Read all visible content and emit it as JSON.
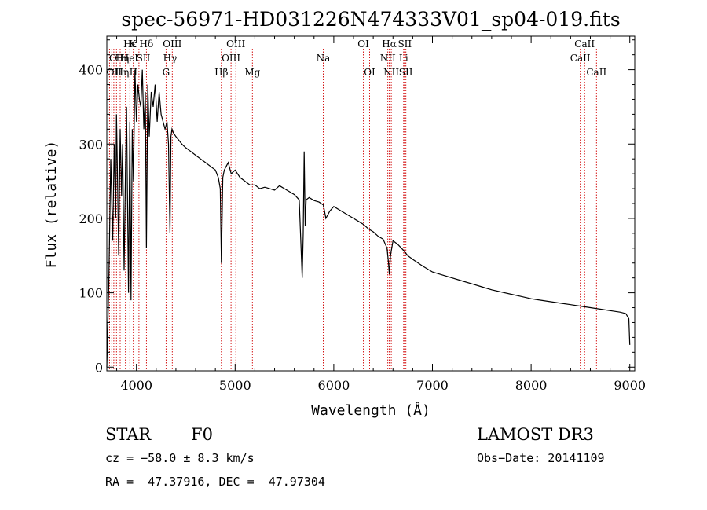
{
  "chart_data": {
    "type": "line",
    "title": "spec-56971-HD031226N474333V01_sp04-019.fits",
    "xlabel": "Wavelength (Å)",
    "ylabel": "Flux (relative)",
    "xlim": [
      3700,
      9050
    ],
    "ylim": [
      -5,
      445
    ],
    "xticks": [
      4000,
      5000,
      6000,
      7000,
      8000,
      9000
    ],
    "yticks": [
      0,
      100,
      200,
      300,
      400
    ],
    "grid": false,
    "series": [
      {
        "name": "spectrum",
        "x": [
          3700,
          3720,
          3740,
          3760,
          3775,
          3790,
          3798,
          3810,
          3820,
          3835,
          3850,
          3860,
          3875,
          3889,
          3900,
          3910,
          3920,
          3933,
          3945,
          3958,
          3970,
          3985,
          4000,
          4015,
          4030,
          4045,
          4060,
          4075,
          4090,
          4101,
          4115,
          4130,
          4150,
          4170,
          4190,
          4210,
          4230,
          4250,
          4270,
          4290,
          4310,
          4325,
          4340,
          4350,
          4360,
          4375,
          4400,
          4430,
          4460,
          4500,
          4550,
          4600,
          4650,
          4700,
          4750,
          4800,
          4830,
          4850,
          4861,
          4875,
          4890,
          4910,
          4930,
          4960,
          5000,
          5050,
          5100,
          5150,
          5200,
          5250,
          5300,
          5350,
          5400,
          5450,
          5500,
          5550,
          5600,
          5650,
          5680,
          5690,
          5700,
          5710,
          5720,
          5750,
          5800,
          5850,
          5895,
          5920,
          5960,
          6000,
          6050,
          6100,
          6150,
          6200,
          6250,
          6300,
          6350,
          6400,
          6450,
          6500,
          6540,
          6555,
          6563,
          6575,
          6600,
          6650,
          6700,
          6750,
          6800,
          6900,
          7000,
          7100,
          7200,
          7300,
          7400,
          7500,
          7600,
          7700,
          7800,
          7900,
          8000,
          8100,
          8200,
          8300,
          8400,
          8500,
          8600,
          8700,
          8800,
          8900,
          8960,
          8990,
          9000
        ],
        "y": [
          0,
          110,
          280,
          170,
          300,
          200,
          340,
          240,
          150,
          320,
          230,
          300,
          130,
          260,
          350,
          220,
          100,
          330,
          90,
          320,
          250,
          400,
          330,
          380,
          360,
          350,
          400,
          320,
          370,
          160,
          380,
          310,
          370,
          350,
          380,
          330,
          370,
          340,
          330,
          320,
          330,
          300,
          180,
          310,
          320,
          315,
          310,
          305,
          300,
          295,
          290,
          285,
          280,
          275,
          270,
          265,
          255,
          240,
          140,
          255,
          265,
          270,
          275,
          260,
          265,
          255,
          250,
          245,
          245,
          240,
          242,
          240,
          238,
          244,
          240,
          236,
          232,
          225,
          120,
          180,
          290,
          190,
          225,
          228,
          224,
          222,
          218,
          200,
          210,
          216,
          212,
          208,
          204,
          200,
          196,
          192,
          186,
          182,
          176,
          172,
          160,
          140,
          125,
          150,
          170,
          165,
          158,
          150,
          145,
          136,
          128,
          124,
          120,
          116,
          112,
          108,
          104,
          101,
          98,
          95,
          92,
          90,
          88,
          86,
          84,
          82,
          80,
          78,
          76,
          74,
          72,
          65,
          30
        ]
      }
    ],
    "line_labels": {
      "top": [
        {
          "text": "Hε",
          "x": 3935
        },
        {
          "text": "K",
          "x": 3960
        },
        {
          "text": "Hδ",
          "x": 4101
        },
        {
          "text": "OIII",
          "x": 4363
        },
        {
          "text": "OIII",
          "x": 5007
        },
        {
          "text": "OI",
          "x": 6300
        },
        {
          "text": "Hα",
          "x": 6563
        },
        {
          "text": "SII",
          "x": 6720
        },
        {
          "text": "CaII",
          "x": 8542
        }
      ],
      "middle": [
        {
          "text": "OII",
          "x": 3800
        },
        {
          "text": "Hη",
          "x": 3855
        },
        {
          "text": "HeI",
          "x": 3930
        },
        {
          "text": "SII",
          "x": 4070
        },
        {
          "text": "Hγ",
          "x": 4341
        },
        {
          "text": "OIII",
          "x": 4959
        },
        {
          "text": "Na",
          "x": 5893
        },
        {
          "text": "NII",
          "x": 6548
        },
        {
          "text": "Li",
          "x": 6708
        },
        {
          "text": "CaII",
          "x": 8498
        }
      ],
      "bottom": [
        {
          "text": "OII",
          "x": 3775
        },
        {
          "text": "Hη",
          "x": 3855
        },
        {
          "text": "H",
          "x": 3970
        },
        {
          "text": "G",
          "x": 4300
        },
        {
          "text": "Hβ",
          "x": 4861
        },
        {
          "text": "Mg",
          "x": 5175
        },
        {
          "text": "OI",
          "x": 6363
        },
        {
          "text": "NII",
          "x": 6583
        },
        {
          "text": "SII",
          "x": 6730
        },
        {
          "text": "CaII",
          "x": 8662
        }
      ]
    },
    "line_markers": [
      3727,
      3750,
      3771,
      3798,
      3835,
      3889,
      3933,
      3968,
      4026,
      4101,
      4300,
      4341,
      4363,
      4861,
      4959,
      5007,
      5175,
      5893,
      6300,
      6363,
      6548,
      6563,
      6583,
      6708,
      6717,
      6731,
      8498,
      8542,
      8662
    ]
  },
  "info": {
    "object_class": "STAR",
    "subclass": "F0",
    "survey": "LAMOST DR3",
    "cz": "cz = −58.0 ± 8.3 km/s",
    "obs_date": "Obs−Date: 20141109",
    "coords": "RA =  47.37916, DEC =  47.97304"
  }
}
